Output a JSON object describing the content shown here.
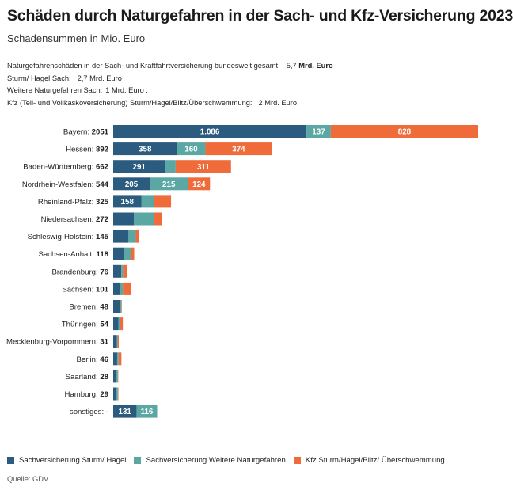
{
  "header": {
    "title": "Schäden durch Naturgefahren in der Sach- und Kfz-Versicherung 2023",
    "subtitle": "Schadensummen in Mio. Euro"
  },
  "notes": [
    {
      "text": "Naturgefahrenschäden in der Sach- und Kraftfahrtversicherung bundesweit gesamt:",
      "value": "5,7",
      "value_bold": "Mrd. Euro"
    },
    {
      "text": "Sturm/ Hagel Sach:",
      "value": "2,7 Mrd. Euro",
      "value_bold": ""
    },
    {
      "text": "Weitere Naturgefahren Sach:",
      "value": "1 Mrd. Euro .",
      "value_bold": ""
    },
    {
      "text": "Kfz (Teil- und Vollkaskoversicherung) Sturm/Hagel/Blitz/Überschwemmung:",
      "value": "2 Mrd. Euro.",
      "value_bold": ""
    }
  ],
  "colors": {
    "sturm_hagel": "#2b5b7e",
    "weitere": "#5aa7a3",
    "kfz": "#ef6b3a"
  },
  "legend": [
    {
      "label": "Sachversicherung Sturm/ Hagel",
      "color": "#2b5b7e"
    },
    {
      "label": "Sachversicherung Weitere Naturgefahren",
      "color": "#5aa7a3"
    },
    {
      "label": "Kfz Sturm/Hagel/Blitz/ Überschwemmung",
      "color": "#ef6b3a"
    }
  ],
  "source": "Quelle: GDV",
  "chart_data": {
    "type": "bar",
    "orientation": "horizontal",
    "stacked": true,
    "categories": [
      "Bayern",
      "Hessen",
      "Baden-Württemberg",
      "Nordrhein-Westfalen",
      "Rheinland-Pfalz",
      "Niedersachsen",
      "Schleswig-Holstein",
      "Sachsen-Anhalt",
      "Brandenburg",
      "Sachsen",
      "Bremen",
      "Thüringen",
      "Mecklenburg-Vorpommern",
      "Berlin",
      "Saarland",
      "Hamburg",
      "sonstiges"
    ],
    "totals": [
      "2051",
      "892",
      "662",
      "544",
      "325",
      "272",
      "145",
      "118",
      "76",
      "101",
      "48",
      "54",
      "31",
      "46",
      "28",
      "29",
      "-"
    ],
    "series": [
      {
        "name": "Sachversicherung Sturm/ Hagel",
        "color": "#2b5b7e",
        "values": [
          1086,
          358,
          291,
          205,
          158,
          117,
          86,
          59,
          45,
          39,
          38,
          30,
          21,
          22,
          17,
          16,
          131
        ],
        "labels": [
          "1.086",
          "358",
          "291",
          "205",
          "158",
          "",
          "",
          "",
          "",
          "",
          "",
          "",
          "",
          "",
          "",
          "",
          "131"
        ]
      },
      {
        "name": "Sachversicherung Weitere Naturgefahren",
        "color": "#5aa7a3",
        "values": [
          137,
          160,
          60,
          215,
          70,
          110,
          41,
          42,
          10,
          15,
          8,
          10,
          4,
          8,
          9,
          10,
          116
        ],
        "labels": [
          "137",
          "160",
          "",
          "215",
          "",
          "",
          "",
          "",
          "",
          "",
          "",
          "",
          "",
          "",
          "",
          "",
          "116"
        ]
      },
      {
        "name": "Kfz Sturm/Hagel/Blitz/ Überschwemmung",
        "color": "#ef6b3a",
        "values": [
          828,
          374,
          311,
          124,
          97,
          45,
          18,
          17,
          21,
          47,
          2,
          14,
          6,
          16,
          2,
          3,
          0
        ],
        "labels": [
          "828",
          "374",
          "311",
          "124",
          "",
          "",
          "",
          "",
          "",
          "",
          "",
          "",
          "",
          "",
          "",
          "",
          ""
        ]
      }
    ],
    "xlim": [
      0,
      2051
    ]
  }
}
